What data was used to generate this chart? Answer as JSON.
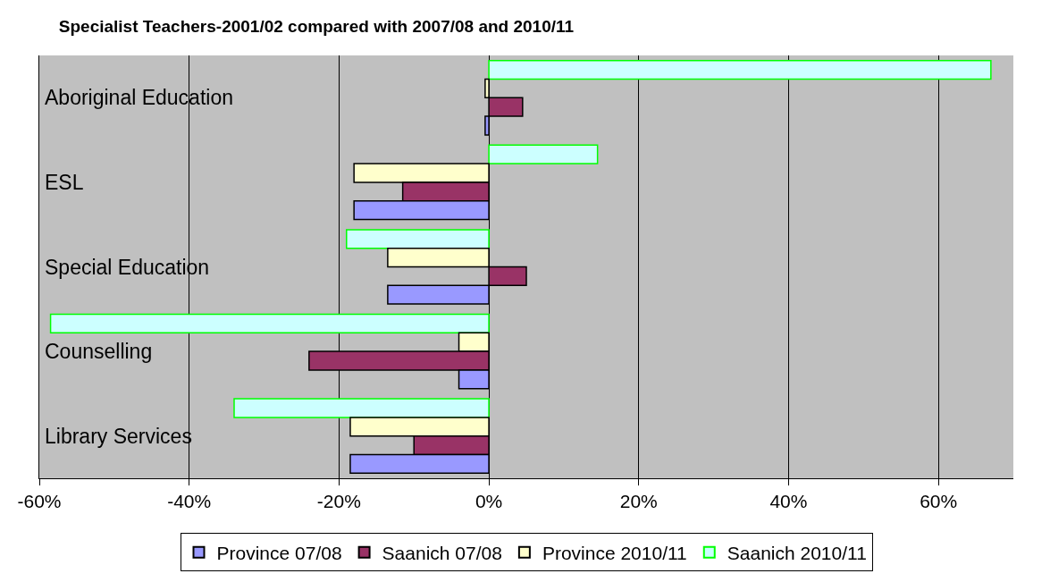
{
  "chart_data": {
    "type": "bar",
    "orientation": "horizontal",
    "title": "Specialist Teachers-2001/02 compared with 2007/08 and 2010/11",
    "categories": [
      "Aboriginal Education",
      "ESL",
      "Special Education",
      "Counselling",
      "Library Services"
    ],
    "series": [
      {
        "name": "Province 07/08",
        "color": "#9999ff",
        "values": [
          -0.5,
          -18,
          -13.5,
          -4,
          -18.5
        ]
      },
      {
        "name": "Saanich 07/08",
        "color": "#993366",
        "values": [
          4.5,
          -11.5,
          5,
          -24,
          -10
        ]
      },
      {
        "name": "Province 2010/11",
        "color": "#ffffcc",
        "values": [
          -0.5,
          -18,
          -13.5,
          -4,
          -18.5
        ]
      },
      {
        "name": "Saanich 2010/11",
        "color": "#ccffff",
        "values": [
          67,
          14.5,
          -19,
          -58.5,
          -34
        ]
      }
    ],
    "xlim": [
      -60,
      70
    ],
    "xticks": [
      {
        "value": -60,
        "label": "-60%"
      },
      {
        "value": -40,
        "label": "-40%"
      },
      {
        "value": -20,
        "label": "-20%"
      },
      {
        "value": 0,
        "label": "0%"
      },
      {
        "value": 20,
        "label": "20%"
      },
      {
        "value": 40,
        "label": "40%"
      },
      {
        "value": 60,
        "label": "60%"
      }
    ],
    "grid": "x",
    "legend": "bottom"
  }
}
